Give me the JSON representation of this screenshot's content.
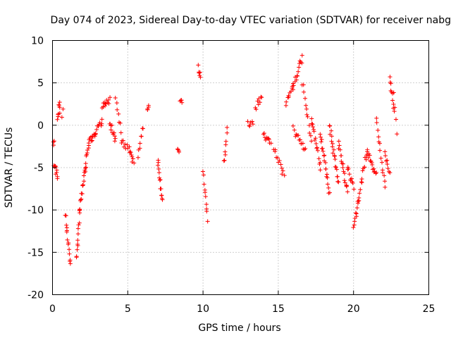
{
  "chart_data": {
    "type": "scatter",
    "title": "Day 074 of 2023, Sidereal Day-to-day VTEC variation (SDTVAR) for receiver nabg",
    "xlabel": "GPS time / hours",
    "ylabel": "SDTVAR / TECUs",
    "xlim": [
      0,
      25
    ],
    "ylim": [
      -20,
      10
    ],
    "xticks": [
      "0",
      "5",
      "10",
      "15",
      "20",
      "25"
    ],
    "yticks": [
      "-20",
      "-15",
      "-10",
      "-5",
      "0",
      "5",
      "10"
    ],
    "grid": true,
    "marker": "plus",
    "series_color": "#ff0000",
    "segments": [
      {
        "x0": 0.0,
        "x1": 0.1,
        "y0": -2.0,
        "y1": -2.2,
        "n": 4
      },
      {
        "x0": 0.1,
        "x1": 0.35,
        "y0": -4.5,
        "y1": -6.0,
        "n": 10
      },
      {
        "x0": 0.35,
        "x1": 0.5,
        "y0": 1.0,
        "y1": 2.8,
        "n": 8
      },
      {
        "x0": 0.5,
        "x1": 0.7,
        "y0": 1.0,
        "y1": 1.5,
        "n": 3
      },
      {
        "x0": 0.85,
        "x1": 1.2,
        "y0": -10.5,
        "y1": -16.5,
        "n": 14
      },
      {
        "x0": 1.6,
        "x1": 1.8,
        "y0": -16.0,
        "y1": -10.0,
        "n": 12
      },
      {
        "x0": 1.8,
        "x1": 2.1,
        "y0": -10.0,
        "y1": -6.0,
        "n": 12
      },
      {
        "x0": 2.1,
        "x1": 2.4,
        "y0": -6.0,
        "y1": -2.0,
        "n": 12
      },
      {
        "x0": 2.4,
        "x1": 2.8,
        "y0": -2.0,
        "y1": -1.0,
        "n": 10
      },
      {
        "x0": 2.8,
        "x1": 3.3,
        "y0": -1.0,
        "y1": 0.5,
        "n": 12
      },
      {
        "x0": 3.3,
        "x1": 3.8,
        "y0": 2.0,
        "y1": 3.0,
        "n": 12
      },
      {
        "x0": 3.8,
        "x1": 4.2,
        "y0": 0.5,
        "y1": -2.0,
        "n": 12
      },
      {
        "x0": 4.2,
        "x1": 4.6,
        "y0": 3.3,
        "y1": -1.5,
        "n": 8
      },
      {
        "x0": 4.6,
        "x1": 5.1,
        "y0": -2.0,
        "y1": -3.0,
        "n": 8
      },
      {
        "x0": 5.1,
        "x1": 5.4,
        "y0": -2.5,
        "y1": -4.5,
        "n": 8
      },
      {
        "x0": 5.7,
        "x1": 6.0,
        "y0": -3.5,
        "y1": 0.0,
        "n": 8
      },
      {
        "x0": 6.3,
        "x1": 6.4,
        "y0": 2.0,
        "y1": 2.5,
        "n": 4
      },
      {
        "x0": 7.0,
        "x1": 7.3,
        "y0": -4.0,
        "y1": -9.0,
        "n": 14
      },
      {
        "x0": 8.3,
        "x1": 8.4,
        "y0": -3.0,
        "y1": -3.2,
        "n": 4
      },
      {
        "x0": 8.5,
        "x1": 8.6,
        "y0": 2.5,
        "y1": 2.8,
        "n": 4
      },
      {
        "x0": 9.7,
        "x1": 9.85,
        "y0": 7.0,
        "y1": 5.5,
        "n": 6
      },
      {
        "x0": 10.0,
        "x1": 10.3,
        "y0": -5.3,
        "y1": -11.0,
        "n": 10
      },
      {
        "x0": 11.4,
        "x1": 11.6,
        "y0": -4.5,
        "y1": -0.5,
        "n": 8
      },
      {
        "x0": 13.0,
        "x1": 13.3,
        "y0": 0.5,
        "y1": 0.0,
        "n": 6
      },
      {
        "x0": 13.5,
        "x1": 13.9,
        "y0": 2.0,
        "y1": 3.5,
        "n": 8
      },
      {
        "x0": 14.0,
        "x1": 14.5,
        "y0": -1.0,
        "y1": -2.0,
        "n": 10
      },
      {
        "x0": 14.7,
        "x1": 15.4,
        "y0": -2.5,
        "y1": -6.0,
        "n": 12
      },
      {
        "x0": 15.5,
        "x1": 16.0,
        "y0": 2.5,
        "y1": 4.5,
        "n": 10
      },
      {
        "x0": 16.0,
        "x1": 16.6,
        "y0": 4.5,
        "y1": 8.0,
        "n": 14
      },
      {
        "x0": 16.0,
        "x1": 16.8,
        "y0": -0.5,
        "y1": -3.0,
        "n": 14
      },
      {
        "x0": 16.6,
        "x1": 17.2,
        "y0": 5.0,
        "y1": -2.0,
        "n": 12
      },
      {
        "x0": 17.2,
        "x1": 17.8,
        "y0": 1.0,
        "y1": -5.0,
        "n": 16
      },
      {
        "x0": 17.8,
        "x1": 18.4,
        "y0": -1.0,
        "y1": -8.0,
        "n": 20
      },
      {
        "x0": 18.4,
        "x1": 19.0,
        "y0": 0.0,
        "y1": -7.0,
        "n": 20
      },
      {
        "x0": 19.0,
        "x1": 19.6,
        "y0": -2.0,
        "y1": -8.0,
        "n": 18
      },
      {
        "x0": 19.6,
        "x1": 20.0,
        "y0": -5.0,
        "y1": -7.5,
        "n": 10
      },
      {
        "x0": 20.0,
        "x1": 20.3,
        "y0": -12.0,
        "y1": -9.0,
        "n": 10
      },
      {
        "x0": 20.3,
        "x1": 20.9,
        "y0": -9.0,
        "y1": -3.0,
        "n": 16
      },
      {
        "x0": 20.9,
        "x1": 21.5,
        "y0": -3.0,
        "y1": -6.0,
        "n": 16
      },
      {
        "x0": 21.5,
        "x1": 22.1,
        "y0": 0.5,
        "y1": -7.5,
        "n": 14
      },
      {
        "x0": 22.1,
        "x1": 22.4,
        "y0": -3.5,
        "y1": -5.5,
        "n": 8
      },
      {
        "x0": 22.4,
        "x1": 22.7,
        "y0": 5.5,
        "y1": 2.0,
        "n": 10
      },
      {
        "x0": 22.7,
        "x1": 22.9,
        "y0": 3.5,
        "y1": -0.7,
        "n": 4
      }
    ]
  }
}
